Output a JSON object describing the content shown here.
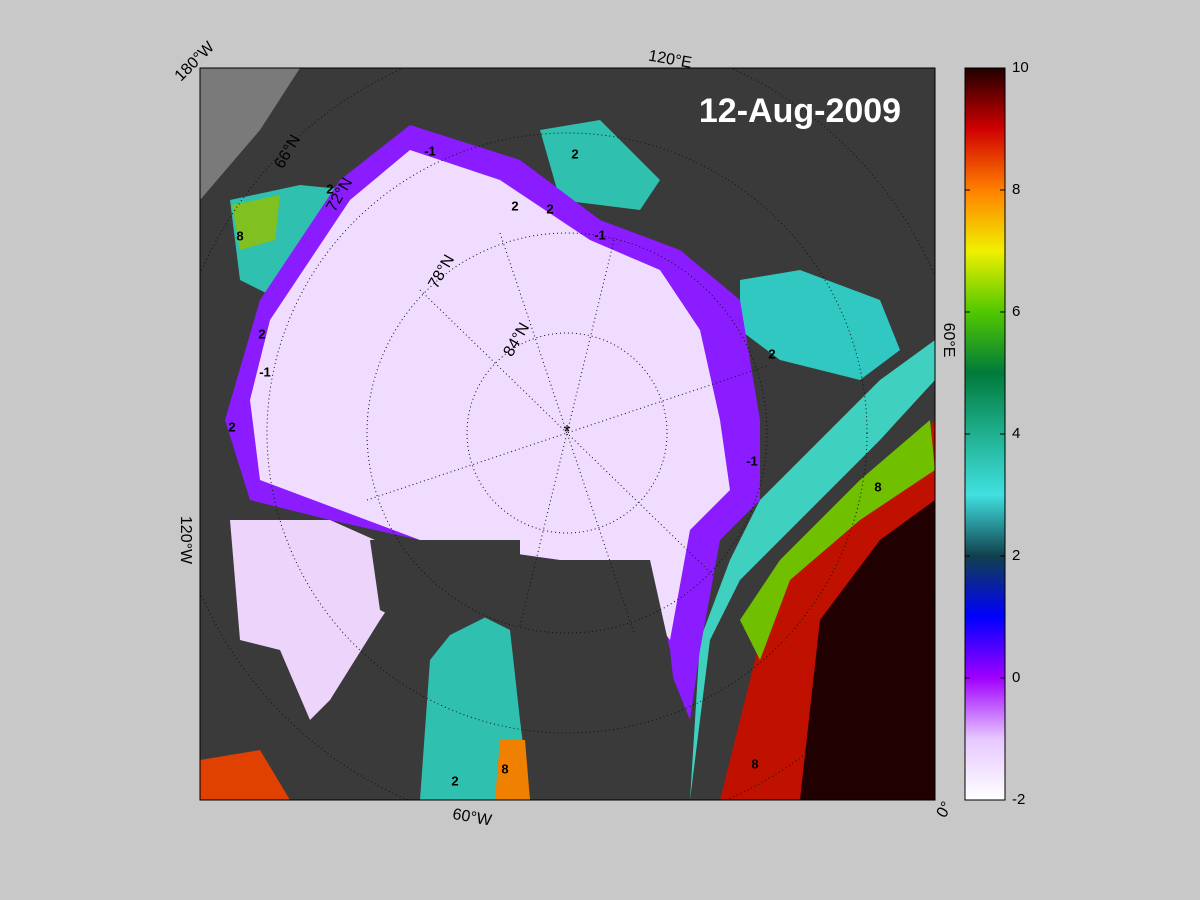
{
  "map": {
    "date": "12-Aug-2009",
    "longitude_labels": [
      "180°W",
      "120°E",
      "60°E",
      "0°",
      "60°W",
      "120°W"
    ],
    "latitude_labels": [
      "66°N",
      "72°N",
      "78°N",
      "84°N"
    ],
    "contour_labels": [
      "-1",
      "2",
      "2",
      "2",
      "-1",
      "2",
      "8",
      "2",
      "-1",
      "2",
      "8",
      "2",
      "8",
      "8",
      "-1",
      "2"
    ]
  },
  "colorbar": {
    "clim": [
      -2,
      10
    ],
    "ticks": [
      -2,
      0,
      2,
      4,
      6,
      8,
      10
    ],
    "colormap": [
      "#ffffff",
      "#e6c8ff",
      "#a000ff",
      "#0000ff",
      "#10404c",
      "#40e0e0",
      "#20b090",
      "#007a3a",
      "#50c800",
      "#f0f000",
      "#ff8000",
      "#d00000",
      "#200000"
    ]
  }
}
